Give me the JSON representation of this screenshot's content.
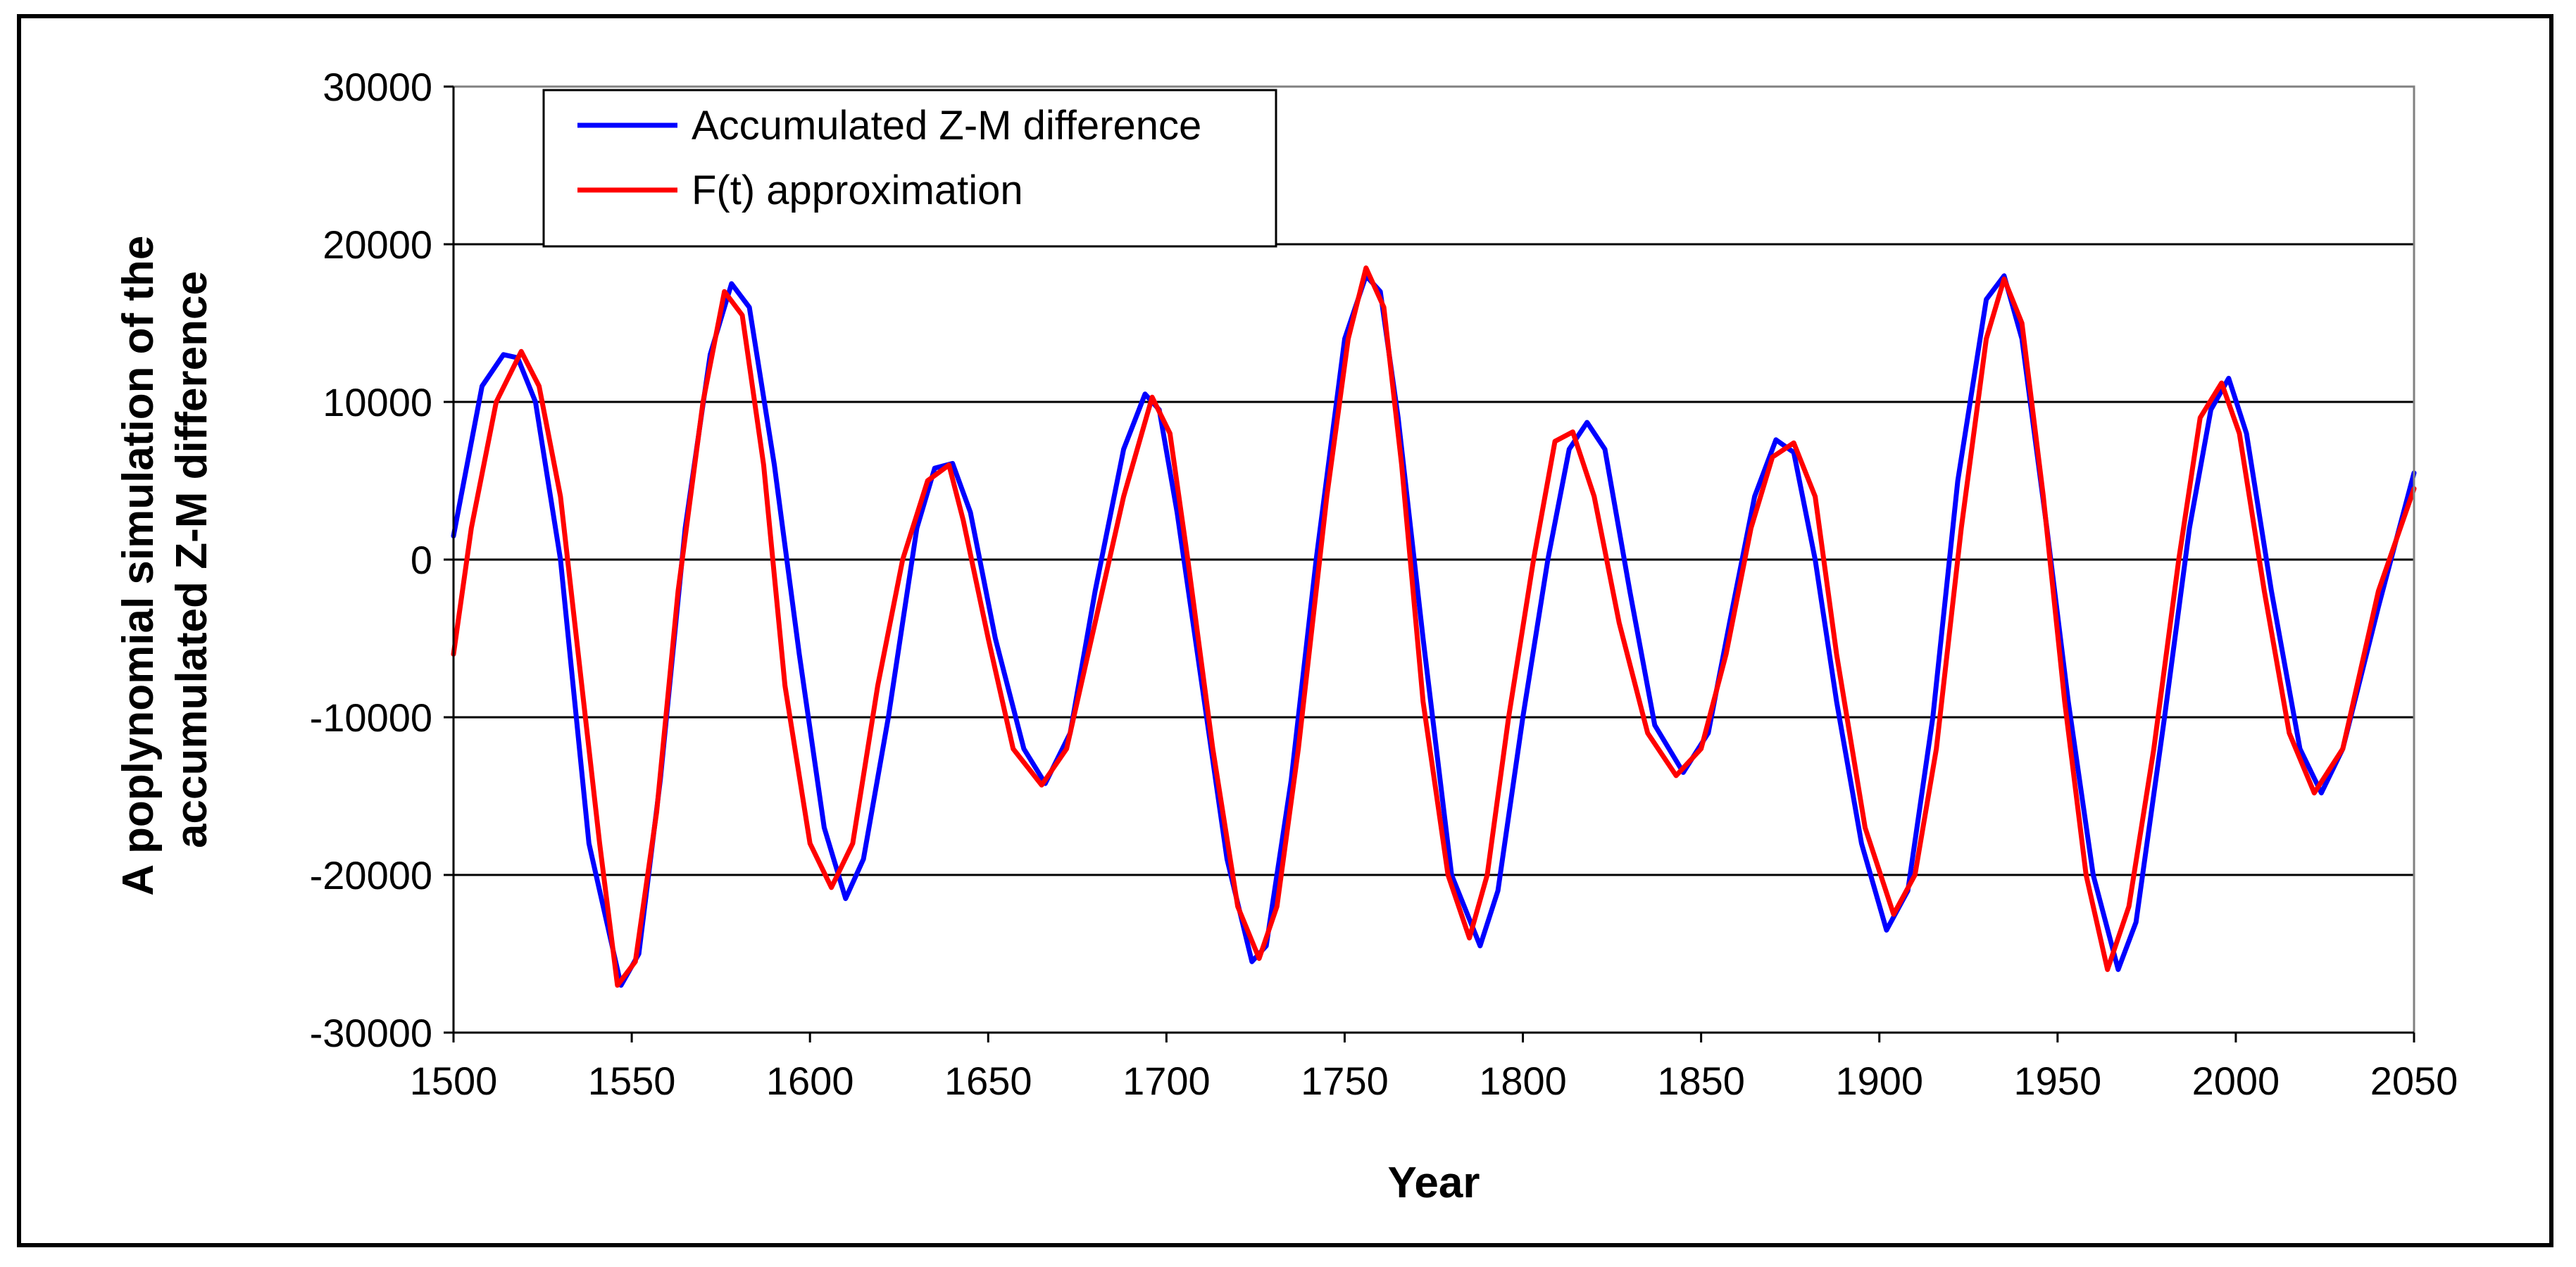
{
  "chart_data": {
    "type": "line",
    "title": "",
    "xlabel": "Year",
    "ylabel": [
      "A poplynomial simulation of the",
      "accumulated Z-M difference"
    ],
    "xlim": [
      1500,
      2050
    ],
    "ylim": [
      -30000,
      30000
    ],
    "xticks": [
      1500,
      1550,
      1600,
      1650,
      1700,
      1750,
      1800,
      1850,
      1900,
      1950,
      2000,
      2050
    ],
    "yticks": [
      -30000,
      -20000,
      -10000,
      0,
      10000,
      20000,
      30000
    ],
    "xtick_labels": [
      "1500",
      "1550",
      "1600",
      "1650",
      "1700",
      "1750",
      "1800",
      "1850",
      "1900",
      "1950",
      "2000",
      "2050"
    ],
    "ytick_labels": [
      "-30000",
      "-20000",
      "-10000",
      "0",
      "10000",
      "20000",
      "30000"
    ],
    "grid": "horizontal",
    "legend_position": "top-left",
    "series": [
      {
        "name": "Accumulated Z-M difference",
        "color": "#0000ff",
        "points": [
          [
            1500,
            1500
          ],
          [
            1508,
            11000
          ],
          [
            1514,
            13000
          ],
          [
            1518,
            12800
          ],
          [
            1523,
            10000
          ],
          [
            1530,
            0
          ],
          [
            1538,
            -18000
          ],
          [
            1547,
            -27000
          ],
          [
            1552,
            -25000
          ],
          [
            1558,
            -14000
          ],
          [
            1565,
            2000
          ],
          [
            1572,
            13000
          ],
          [
            1578,
            17500
          ],
          [
            1583,
            16000
          ],
          [
            1590,
            6000
          ],
          [
            1597,
            -6000
          ],
          [
            1604,
            -17000
          ],
          [
            1610,
            -21500
          ],
          [
            1615,
            -19000
          ],
          [
            1622,
            -10000
          ],
          [
            1630,
            2000
          ],
          [
            1635,
            5800
          ],
          [
            1640,
            6100
          ],
          [
            1645,
            3000
          ],
          [
            1652,
            -5000
          ],
          [
            1660,
            -12000
          ],
          [
            1666,
            -14200
          ],
          [
            1673,
            -11000
          ],
          [
            1680,
            -2000
          ],
          [
            1688,
            7000
          ],
          [
            1694,
            10500
          ],
          [
            1698,
            9500
          ],
          [
            1703,
            3000
          ],
          [
            1710,
            -8000
          ],
          [
            1717,
            -19000
          ],
          [
            1724,
            -25500
          ],
          [
            1728,
            -24500
          ],
          [
            1735,
            -14000
          ],
          [
            1742,
            0
          ],
          [
            1750,
            14000
          ],
          [
            1756,
            18000
          ],
          [
            1760,
            17000
          ],
          [
            1765,
            9000
          ],
          [
            1772,
            -5000
          ],
          [
            1780,
            -20000
          ],
          [
            1788,
            -24500
          ],
          [
            1793,
            -21000
          ],
          [
            1800,
            -10000
          ],
          [
            1807,
            0
          ],
          [
            1813,
            7000
          ],
          [
            1818,
            8700
          ],
          [
            1823,
            7000
          ],
          [
            1830,
            -2000
          ],
          [
            1837,
            -10500
          ],
          [
            1845,
            -13500
          ],
          [
            1852,
            -11000
          ],
          [
            1858,
            -4000
          ],
          [
            1865,
            4000
          ],
          [
            1871,
            7600
          ],
          [
            1876,
            6800
          ],
          [
            1882,
            0
          ],
          [
            1888,
            -9000
          ],
          [
            1895,
            -18000
          ],
          [
            1902,
            -23500
          ],
          [
            1908,
            -21000
          ],
          [
            1915,
            -10000
          ],
          [
            1922,
            5000
          ],
          [
            1930,
            16500
          ],
          [
            1935,
            18000
          ],
          [
            1940,
            14000
          ],
          [
            1947,
            2000
          ],
          [
            1953,
            -9000
          ],
          [
            1960,
            -20000
          ],
          [
            1967,
            -26000
          ],
          [
            1972,
            -23000
          ],
          [
            1980,
            -10000
          ],
          [
            1987,
            2000
          ],
          [
            1993,
            9500
          ],
          [
            1998,
            11500
          ],
          [
            2003,
            8000
          ],
          [
            2010,
            -2000
          ],
          [
            2018,
            -12000
          ],
          [
            2024,
            -14800
          ],
          [
            2030,
            -12000
          ],
          [
            2040,
            -3000
          ],
          [
            2050,
            5500
          ]
        ]
      },
      {
        "name": "F(t) approximation",
        "color": "#ff0000",
        "points": [
          [
            1500,
            -6000
          ],
          [
            1505,
            2000
          ],
          [
            1512,
            10000
          ],
          [
            1519,
            13200
          ],
          [
            1524,
            11000
          ],
          [
            1530,
            4000
          ],
          [
            1536,
            -8000
          ],
          [
            1541,
            -18000
          ],
          [
            1546,
            -27000
          ],
          [
            1551,
            -25500
          ],
          [
            1557,
            -16000
          ],
          [
            1563,
            -2000
          ],
          [
            1570,
            10000
          ],
          [
            1576,
            17000
          ],
          [
            1581,
            15500
          ],
          [
            1587,
            6000
          ],
          [
            1593,
            -8000
          ],
          [
            1600,
            -18000
          ],
          [
            1606,
            -20800
          ],
          [
            1612,
            -18000
          ],
          [
            1619,
            -8000
          ],
          [
            1626,
            0
          ],
          [
            1633,
            5000
          ],
          [
            1639,
            6000
          ],
          [
            1643,
            2500
          ],
          [
            1650,
            -5000
          ],
          [
            1657,
            -12000
          ],
          [
            1665,
            -14300
          ],
          [
            1672,
            -12000
          ],
          [
            1680,
            -4000
          ],
          [
            1688,
            4000
          ],
          [
            1696,
            10300
          ],
          [
            1701,
            8000
          ],
          [
            1706,
            0
          ],
          [
            1713,
            -12000
          ],
          [
            1720,
            -22000
          ],
          [
            1726,
            -25300
          ],
          [
            1731,
            -22000
          ],
          [
            1737,
            -12000
          ],
          [
            1745,
            4000
          ],
          [
            1751,
            14000
          ],
          [
            1756,
            18500
          ],
          [
            1761,
            16000
          ],
          [
            1766,
            6000
          ],
          [
            1772,
            -9000
          ],
          [
            1779,
            -20000
          ],
          [
            1785,
            -24000
          ],
          [
            1790,
            -20000
          ],
          [
            1796,
            -10000
          ],
          [
            1803,
            0
          ],
          [
            1809,
            7500
          ],
          [
            1814,
            8100
          ],
          [
            1820,
            4000
          ],
          [
            1827,
            -4000
          ],
          [
            1835,
            -11000
          ],
          [
            1843,
            -13700
          ],
          [
            1850,
            -12000
          ],
          [
            1857,
            -6000
          ],
          [
            1864,
            2000
          ],
          [
            1870,
            6500
          ],
          [
            1876,
            7400
          ],
          [
            1882,
            4000
          ],
          [
            1888,
            -6000
          ],
          [
            1896,
            -17000
          ],
          [
            1904,
            -22500
          ],
          [
            1910,
            -20000
          ],
          [
            1916,
            -12000
          ],
          [
            1923,
            2000
          ],
          [
            1930,
            14000
          ],
          [
            1935,
            17800
          ],
          [
            1940,
            15000
          ],
          [
            1946,
            4000
          ],
          [
            1952,
            -9000
          ],
          [
            1958,
            -20000
          ],
          [
            1964,
            -26000
          ],
          [
            1970,
            -22000
          ],
          [
            1977,
            -12000
          ],
          [
            1984,
            0
          ],
          [
            1990,
            9000
          ],
          [
            1996,
            11200
          ],
          [
            2001,
            8000
          ],
          [
            2008,
            -2000
          ],
          [
            2015,
            -11000
          ],
          [
            2022,
            -14800
          ],
          [
            2030,
            -12000
          ],
          [
            2040,
            -2000
          ],
          [
            2050,
            4500
          ]
        ]
      }
    ]
  }
}
